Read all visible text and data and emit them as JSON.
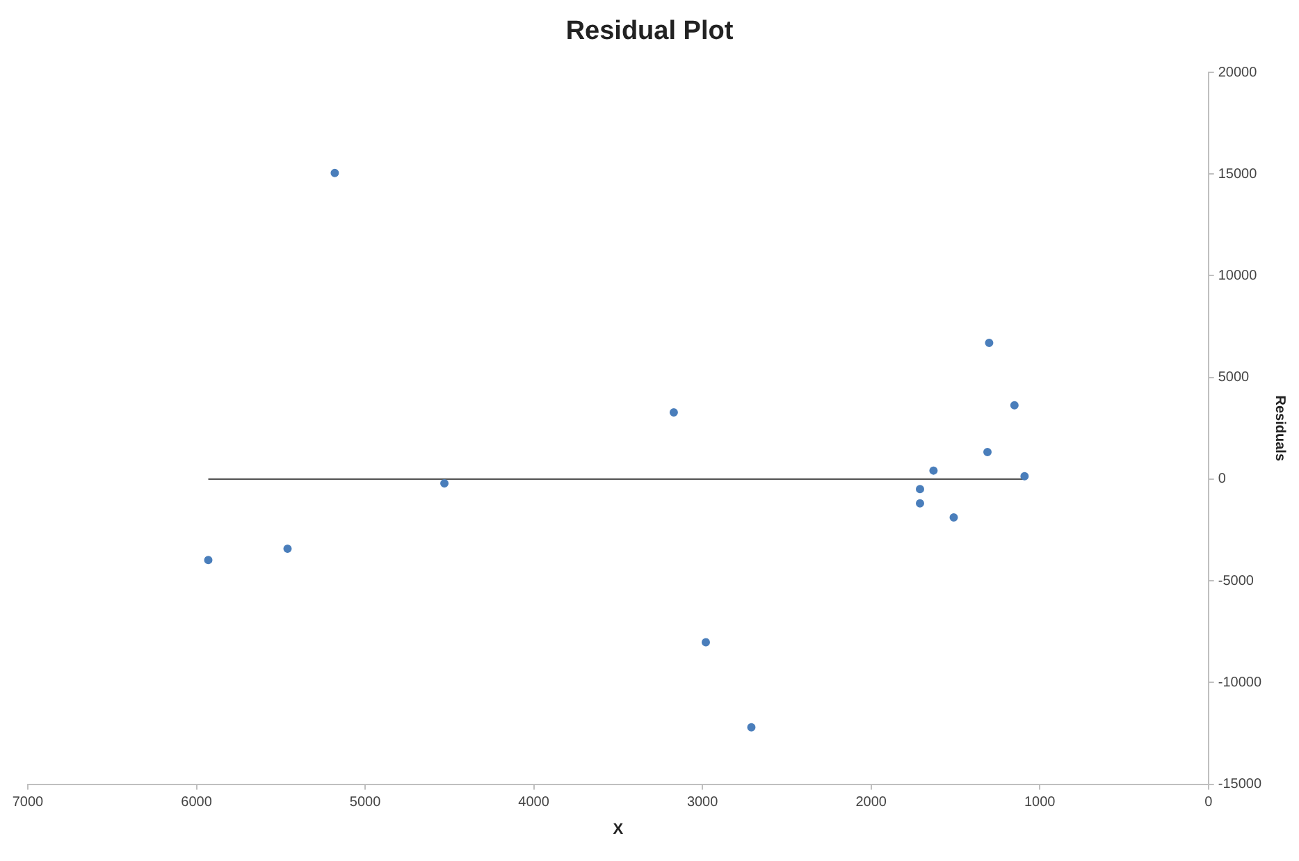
{
  "chart_data": {
    "type": "scatter",
    "title": "Residual Plot",
    "xlabel": "X",
    "ylabel": "Residuals",
    "xlim": [
      7000,
      0
    ],
    "xticks": [
      7000,
      6000,
      5000,
      4000,
      3000,
      2000,
      1000,
      0
    ],
    "ylim": [
      -15000,
      20000
    ],
    "yticks": [
      -15000,
      -10000,
      -5000,
      0,
      5000,
      10000,
      15000,
      20000
    ],
    "grid": false,
    "legend": false,
    "series": [
      {
        "marker": "circle",
        "color": "#4a7ebb",
        "x": [
          5180,
          5930,
          5460,
          4530,
          3170,
          2980,
          2710,
          1300,
          1150,
          1310,
          1630,
          1090,
          1710,
          1710,
          1510
        ],
        "values": [
          15050,
          -3980,
          -3420,
          -210,
          3280,
          -8020,
          -12200,
          6700,
          3630,
          1330,
          420,
          140,
          -490,
          -1190,
          -1880
        ]
      },
      {
        "type": "line",
        "marker": "none",
        "color": "#595959",
        "line_style": "solid",
        "x": [
          5930,
          1090
        ],
        "values": [
          0,
          0
        ]
      }
    ]
  }
}
